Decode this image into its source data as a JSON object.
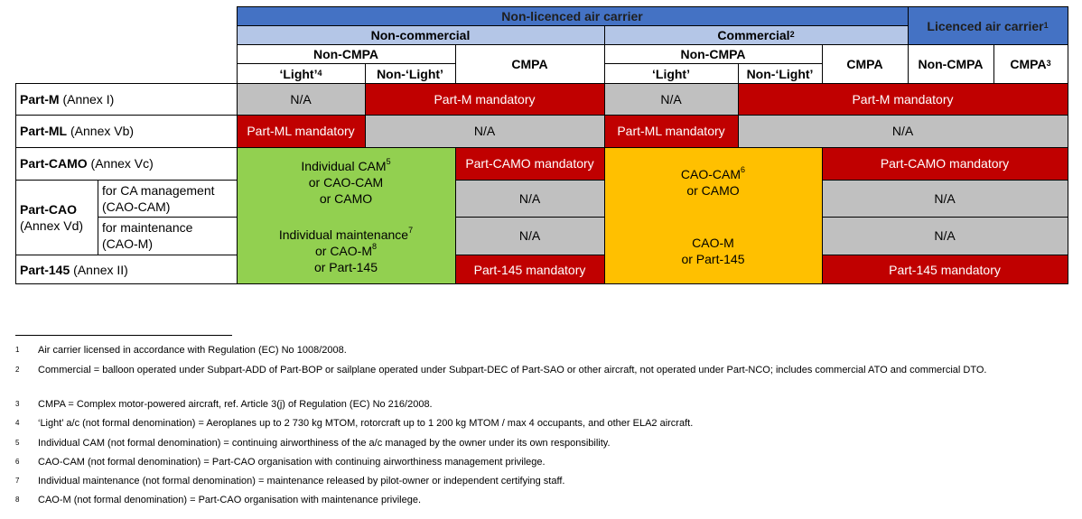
{
  "header": {
    "non_licenced": "Non-licenced air carrier",
    "licenced": "Licenced air carrier",
    "licenced_fn": "1",
    "non_commercial": "Non-commercial",
    "commercial": "Commercial",
    "commercial_fn": "2",
    "non_cmpa_nc": "Non-CMPA",
    "non_cmpa_c": "Non-CMPA",
    "light_nc": "‘Light’",
    "light_nc_fn": "4",
    "nonlight_nc": "Non-‘Light’",
    "cmpa_nc": "CMPA",
    "light_c": "‘Light’",
    "nonlight_c": "Non-‘Light’",
    "cmpa_c": "CMPA",
    "non_cmpa_l": "Non-CMPA",
    "cmpa_l": "CMPA",
    "cmpa_l_fn": "3"
  },
  "rows": {
    "partm_b": "Part-M",
    "partm_r": " (Annex I)",
    "partml_b": "Part-ML",
    "partml_r": " (Annex Vb)",
    "partcamo_b": "Part-CAMO",
    "partcamo_r": " (Annex Vc)",
    "partcao_b": "Part-CAO",
    "partcao_r": "(Annex Vd)",
    "cao_sub1_a": "for CA management",
    "cao_sub1_b": "(CAO-CAM)",
    "cao_sub2_a": "for maintenance",
    "cao_sub2_b": "(CAO-M)",
    "part145_b": "Part-145",
    "part145_r": " (Annex II)"
  },
  "cells": {
    "na": "N/A",
    "partm_mand": "Part-M mandatory",
    "partml_mand": "Part-ML mandatory",
    "partcamo_mand": "Part-CAMO mandatory",
    "part145_mand": "Part-145 mandatory",
    "green1_a": "Individual CAM",
    "green1_fn": "5",
    "green1_b": "or CAO-CAM",
    "green1_c": "or CAMO",
    "green2_a": "Individual maintenance",
    "green2_fn": "7",
    "green2_b": "or CAO-M",
    "green2_fn2": "8",
    "green2_c": "or Part-145",
    "orange1_a": "CAO-CAM",
    "orange1_fn": "6",
    "orange1_b": "or CAMO",
    "orange2_a": "CAO-M",
    "orange2_b": "or Part-145"
  },
  "footnotes": [
    {
      "num": "1",
      "text": "Air carrier licensed in accordance with Regulation (EC) No 1008/2008."
    },
    {
      "num": "2",
      "text": "Commercial = balloon operated under Subpart-ADD of Part-BOP or sailplane operated under Subpart-DEC of Part-SAO or other aircraft, not operated under Part-NCO; includes commercial ATO and commercial DTO."
    },
    {
      "num": "3",
      "text": "CMPA = Complex motor-powered aircraft, ref. Article 3(j) of Regulation (EC) No 216/2008."
    },
    {
      "num": "4",
      "text": "‘Light’ a/c (not formal denomination) = Aeroplanes up to 2 730 kg MTOM, rotorcraft up to 1 200 kg MTOM / max 4 occupants, and other ELA2 aircraft."
    },
    {
      "num": "5",
      "text": "Individual CAM (not formal denomination) = continuing airworthiness of the a/c managed by the owner under its own responsibility."
    },
    {
      "num": "6",
      "text": "CAO-CAM (not formal denomination) = Part-CAO organisation with continuing airworthiness management privilege."
    },
    {
      "num": "7",
      "text": "Individual maintenance (not formal denomination) = maintenance released by pilot-owner or independent certifying staff."
    },
    {
      "num": "8",
      "text": "CAO-M (not formal denomination) = Part-CAO organisation with maintenance privilege."
    }
  ],
  "colors": {
    "blue": "#4472c4",
    "light_blue": "#b4c6e7",
    "grey": "#c0c0c0",
    "red": "#c00000",
    "green": "#92d050",
    "orange": "#ffc000"
  }
}
